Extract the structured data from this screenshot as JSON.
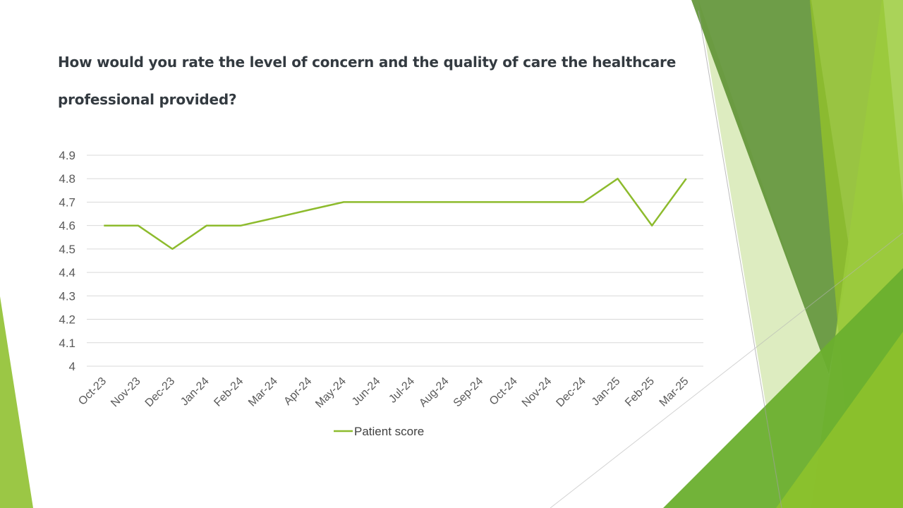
{
  "slide": {
    "title": "How would you rate the level of concern and the quality of care the healthcare professional provided?"
  },
  "theme": {
    "line_color": "#8DBB2D",
    "grid_color": "#D9D9D9",
    "text_color": "#595959"
  },
  "chart_data": {
    "type": "line",
    "title": "",
    "xlabel": "",
    "ylabel": "",
    "categories": [
      "Oct-23",
      "Nov-23",
      "Dec-23",
      "Jan-24",
      "Feb-24",
      "Mar-24",
      "Apr-24",
      "May-24",
      "Jun-24",
      "Jul-24",
      "Aug-24",
      "Sep-24",
      "Oct-24",
      "Nov-24",
      "Dec-24",
      "Jan-25",
      "Feb-25",
      "Mar-25"
    ],
    "series": [
      {
        "name": "Patient score",
        "values": [
          4.6,
          4.6,
          4.5,
          4.6,
          4.6,
          4.633,
          4.667,
          4.7,
          4.7,
          4.7,
          4.7,
          4.7,
          4.7,
          4.7,
          4.7,
          4.8,
          4.6,
          4.8
        ]
      }
    ],
    "ylim": [
      4,
      4.9
    ],
    "yticks": [
      "4",
      "4.1",
      "4.2",
      "4.3",
      "4.4",
      "4.5",
      "4.6",
      "4.7",
      "4.8",
      "4.9"
    ],
    "grid": true,
    "legend": "bottom"
  }
}
